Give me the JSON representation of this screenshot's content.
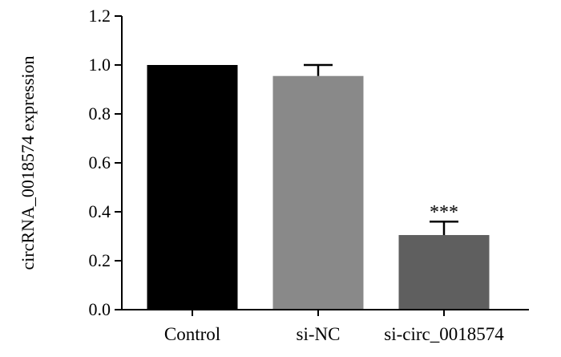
{
  "chart_data": {
    "type": "bar",
    "title": "",
    "xlabel": "",
    "ylabel": "circRNA_0018574 expression",
    "categories": [
      "Control",
      "si-NC",
      "si-circ_0018574"
    ],
    "values": [
      1.0,
      0.955,
      0.305
    ],
    "errors": [
      0.0,
      0.045,
      0.055
    ],
    "colors": [
      "#000000",
      "#898989",
      "#5f5f5f"
    ],
    "annotations": [
      "",
      "",
      "***"
    ],
    "ylim": [
      0,
      1.2
    ],
    "yticks": [
      0.0,
      0.2,
      0.4,
      0.6,
      0.8,
      1.0,
      1.2
    ],
    "ytick_labels": [
      "0.0",
      "0.2",
      "0.4",
      "0.6",
      "0.8",
      "1.0",
      "1.2"
    ],
    "grid": false,
    "legend": "none"
  }
}
